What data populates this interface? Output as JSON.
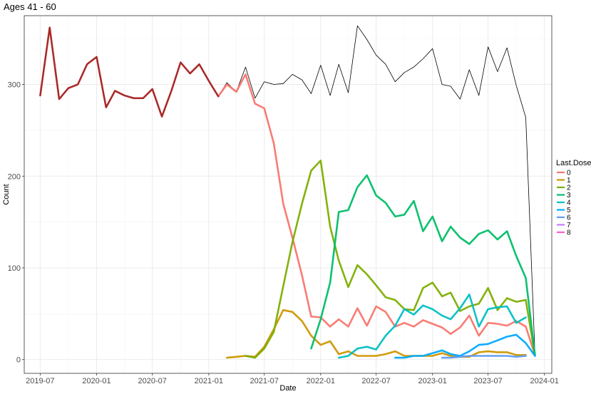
{
  "chart_data": {
    "type": "line",
    "title": "Ages 41 - 60",
    "xlabel": "Date",
    "ylabel": "Count",
    "x_axis": {
      "type": "date",
      "range": [
        "2019-05-10",
        "2024-01-25"
      ],
      "ticks": [
        "2019-07-01",
        "2020-01-01",
        "2020-07-01",
        "2021-01-01",
        "2021-07-01",
        "2022-01-01",
        "2022-07-01",
        "2023-01-01",
        "2023-07-01",
        "2024-01-01"
      ],
      "tick_labels": [
        "2019-07",
        "2020-01",
        "2020-07",
        "2021-01",
        "2021-07",
        "2022-01",
        "2022-07",
        "2023-01",
        "2023-07",
        "2024-01"
      ]
    },
    "y_axis": {
      "range": [
        -15,
        375
      ],
      "ticks": [
        0,
        100,
        200,
        300
      ],
      "tick_labels": [
        "0",
        "100",
        "200",
        "300"
      ]
    },
    "grid": true,
    "legend": {
      "title": "Last.Dose",
      "position": "right"
    },
    "total": {
      "color": "#000000",
      "x": [
        "2019-07-01",
        "2019-08-01",
        "2019-09-01",
        "2019-10-01",
        "2019-11-01",
        "2019-12-01",
        "2020-01-01",
        "2020-02-01",
        "2020-03-01",
        "2020-04-01",
        "2020-05-01",
        "2020-06-01",
        "2020-07-01",
        "2020-08-01",
        "2020-09-01",
        "2020-10-01",
        "2020-11-01",
        "2020-12-01",
        "2021-01-01",
        "2021-02-01",
        "2021-03-01",
        "2021-04-01",
        "2021-05-01",
        "2021-06-01",
        "2021-07-01",
        "2021-08-01",
        "2021-09-01",
        "2021-10-01",
        "2021-11-01",
        "2021-12-01",
        "2022-01-01",
        "2022-02-01",
        "2022-03-01",
        "2022-04-01",
        "2022-05-01",
        "2022-06-01",
        "2022-07-01",
        "2022-08-01",
        "2022-09-01",
        "2022-10-01",
        "2022-11-01",
        "2022-12-01",
        "2023-01-01",
        "2023-02-01",
        "2023-03-01",
        "2023-04-01",
        "2023-05-01",
        "2023-06-01",
        "2023-07-01",
        "2023-08-01",
        "2023-09-01",
        "2023-10-01",
        "2023-11-01",
        "2023-12-01"
      ],
      "y": [
        288,
        362,
        284,
        296,
        300,
        322,
        330,
        275,
        293,
        288,
        285,
        285,
        295,
        265,
        293,
        324,
        312,
        322,
        304,
        287,
        302,
        292,
        319,
        285,
        303,
        300,
        301,
        311,
        305,
        290,
        321,
        288,
        322,
        291,
        364,
        349,
        332,
        322,
        303,
        313,
        319,
        328,
        339,
        300,
        298,
        284,
        316,
        288,
        341,
        314,
        340,
        299,
        264,
        5
      ]
    },
    "series": [
      {
        "name": "0",
        "color": "#F8766D",
        "x": [
          "2019-07-01",
          "2019-08-01",
          "2019-09-01",
          "2019-10-01",
          "2019-11-01",
          "2019-12-01",
          "2020-01-01",
          "2020-02-01",
          "2020-03-01",
          "2020-04-01",
          "2020-05-01",
          "2020-06-01",
          "2020-07-01",
          "2020-08-01",
          "2020-09-01",
          "2020-10-01",
          "2020-11-01",
          "2020-12-01",
          "2021-01-01",
          "2021-02-01",
          "2021-03-01",
          "2021-04-01",
          "2021-05-01",
          "2021-06-01",
          "2021-07-01",
          "2021-08-01",
          "2021-09-01",
          "2021-10-01",
          "2021-11-01",
          "2021-12-01",
          "2022-01-01",
          "2022-02-01",
          "2022-03-01",
          "2022-04-01",
          "2022-05-01",
          "2022-06-01",
          "2022-07-01",
          "2022-08-01",
          "2022-09-01",
          "2022-10-01",
          "2022-11-01",
          "2022-12-01",
          "2023-01-01",
          "2023-02-01",
          "2023-03-01",
          "2023-04-01",
          "2023-05-01",
          "2023-06-01",
          "2023-07-01",
          "2023-08-01",
          "2023-09-01",
          "2023-10-01",
          "2023-11-01",
          "2023-12-01"
        ],
        "y": [
          288,
          362,
          284,
          296,
          300,
          322,
          330,
          275,
          293,
          288,
          285,
          285,
          295,
          265,
          293,
          324,
          312,
          322,
          304,
          287,
          300,
          292,
          311,
          279,
          274,
          236,
          170,
          133,
          92,
          47,
          46,
          36,
          44,
          36,
          56,
          37,
          58,
          52,
          36,
          40,
          36,
          43,
          39,
          35,
          28,
          35,
          48,
          26,
          40,
          39,
          37,
          42,
          36,
          5
        ]
      },
      {
        "name": "1",
        "color": "#CD9600",
        "x": [
          "2021-03-01",
          "2021-04-01",
          "2021-05-01",
          "2021-06-01",
          "2021-07-01",
          "2021-08-01",
          "2021-09-01",
          "2021-10-01",
          "2021-11-01",
          "2021-12-01",
          "2022-01-01",
          "2022-02-01",
          "2022-03-01",
          "2022-04-01",
          "2022-05-01",
          "2022-06-01",
          "2022-07-01",
          "2022-08-01",
          "2022-09-01",
          "2022-10-01",
          "2022-11-01",
          "2022-12-01",
          "2023-01-01",
          "2023-02-01",
          "2023-03-01",
          "2023-04-01",
          "2023-05-01",
          "2023-06-01",
          "2023-07-01",
          "2023-08-01",
          "2023-09-01",
          "2023-10-01",
          "2023-11-01"
        ],
        "y": [
          2,
          3,
          4,
          3,
          14,
          33,
          54,
          52,
          42,
          26,
          16,
          20,
          6,
          9,
          4,
          4,
          4,
          6,
          9,
          4,
          4,
          4,
          4,
          7,
          4,
          3,
          3,
          8,
          9,
          8,
          8,
          5,
          5
        ]
      },
      {
        "name": "2",
        "color": "#7CAE00",
        "x": [
          "2021-05-01",
          "2021-06-01",
          "2021-07-01",
          "2021-08-01",
          "2021-09-01",
          "2021-10-01",
          "2021-11-01",
          "2021-12-01",
          "2022-01-01",
          "2022-02-01",
          "2022-03-01",
          "2022-04-01",
          "2022-05-01",
          "2022-06-01",
          "2022-07-01",
          "2022-08-01",
          "2022-09-01",
          "2022-10-01",
          "2022-11-01",
          "2022-12-01",
          "2023-01-01",
          "2023-02-01",
          "2023-03-01",
          "2023-04-01",
          "2023-05-01",
          "2023-06-01",
          "2023-07-01",
          "2023-08-01",
          "2023-09-01",
          "2023-10-01",
          "2023-11-01",
          "2023-12-01"
        ],
        "y": [
          4,
          2,
          12,
          30,
          80,
          128,
          170,
          206,
          217,
          145,
          108,
          79,
          103,
          93,
          81,
          68,
          65,
          55,
          54,
          78,
          84,
          69,
          73,
          53,
          58,
          61,
          78,
          54,
          67,
          63,
          65,
          5
        ]
      },
      {
        "name": "3",
        "color": "#00BE67",
        "x": [
          "2021-12-01",
          "2022-01-01",
          "2022-02-01",
          "2022-03-01",
          "2022-04-01",
          "2022-05-01",
          "2022-06-01",
          "2022-07-01",
          "2022-08-01",
          "2022-09-01",
          "2022-10-01",
          "2022-11-01",
          "2022-12-01",
          "2023-01-01",
          "2023-02-01",
          "2023-03-01",
          "2023-04-01",
          "2023-05-01",
          "2023-06-01",
          "2023-07-01",
          "2023-08-01",
          "2023-09-01",
          "2023-10-01",
          "2023-11-01",
          "2023-12-01"
        ],
        "y": [
          12,
          44,
          84,
          161,
          163,
          188,
          201,
          179,
          171,
          156,
          158,
          173,
          140,
          156,
          129,
          145,
          133,
          126,
          137,
          141,
          131,
          140,
          113,
          89,
          5
        ]
      },
      {
        "name": "4",
        "color": "#00BFC4",
        "x": [
          "2022-03-01",
          "2022-04-01",
          "2022-05-01",
          "2022-06-01",
          "2022-07-01",
          "2022-08-01",
          "2022-09-01",
          "2022-10-01",
          "2022-11-01",
          "2022-12-01",
          "2023-01-01",
          "2023-02-01",
          "2023-03-01",
          "2023-04-01",
          "2023-05-01",
          "2023-06-01",
          "2023-07-01",
          "2023-08-01",
          "2023-09-01",
          "2023-10-01",
          "2023-11-01"
        ],
        "y": [
          2,
          4,
          12,
          14,
          11,
          26,
          37,
          55,
          49,
          59,
          55,
          48,
          44,
          56,
          71,
          36,
          55,
          57,
          58,
          40,
          46
        ]
      },
      {
        "name": "5",
        "color": "#00A9FF",
        "x": [
          "2022-09-01",
          "2022-10-01",
          "2022-11-01",
          "2022-12-01",
          "2023-01-01",
          "2023-02-01",
          "2023-03-01",
          "2023-04-01",
          "2023-05-01",
          "2023-06-01",
          "2023-07-01",
          "2023-08-01",
          "2023-09-01",
          "2023-10-01",
          "2023-11-01",
          "2023-12-01"
        ],
        "y": [
          2,
          2,
          4,
          4,
          7,
          10,
          6,
          4,
          9,
          16,
          17,
          21,
          25,
          27,
          18,
          4
        ]
      },
      {
        "name": "6",
        "color": "#5E9CF8",
        "x": [
          "2023-02-01",
          "2023-03-01",
          "2023-04-01",
          "2023-05-01",
          "2023-06-01",
          "2023-07-01",
          "2023-08-01",
          "2023-09-01",
          "2023-10-01",
          "2023-11-01"
        ],
        "y": [
          2,
          2,
          3,
          4,
          4,
          4,
          4,
          4,
          3,
          4
        ]
      },
      {
        "name": "7",
        "color": "#C77CFF",
        "x": [],
        "y": []
      },
      {
        "name": "8",
        "color": "#FF61CC",
        "x": [],
        "y": []
      }
    ]
  }
}
